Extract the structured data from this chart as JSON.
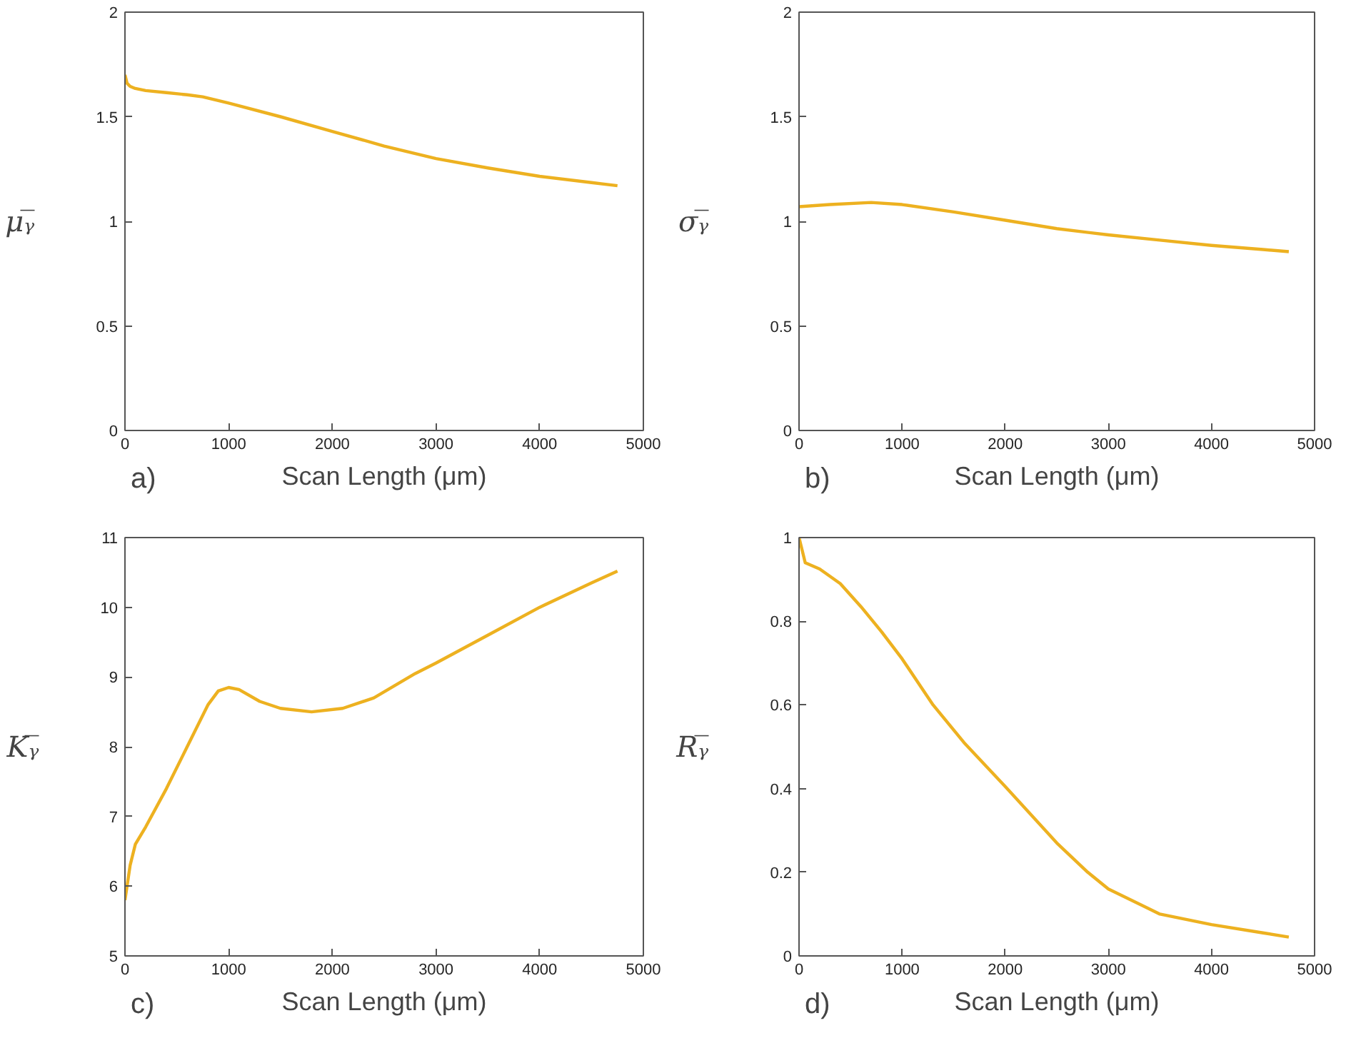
{
  "chart_data": [
    {
      "type": "line",
      "xlabel": "Scan Length (μm)",
      "ylabel": "μᵧ̅",
      "annotations": [
        "a)"
      ],
      "grid": false,
      "xlim": [
        0,
        5000
      ],
      "xticks": [
        0,
        1000,
        2000,
        3000,
        4000,
        5000
      ],
      "ylim": [
        0,
        2
      ],
      "yticks": [
        0,
        0.5,
        1,
        1.5,
        2
      ],
      "x": [
        0,
        20,
        50,
        100,
        200,
        400,
        600,
        750,
        1000,
        1500,
        2000,
        2500,
        3000,
        3500,
        4000,
        4500,
        4750
      ],
      "series": [
        {
          "color": "#edb120",
          "values": [
            1.7,
            1.66,
            1.645,
            1.635,
            1.625,
            1.615,
            1.605,
            1.595,
            1.565,
            1.5,
            1.43,
            1.36,
            1.3,
            1.255,
            1.215,
            1.185,
            1.17
          ]
        }
      ]
    },
    {
      "type": "line",
      "xlabel": "Scan Length (μm)",
      "ylabel": "σᵧ̅",
      "annotations": [
        "b)"
      ],
      "grid": false,
      "xlim": [
        0,
        5000
      ],
      "xticks": [
        0,
        1000,
        2000,
        3000,
        4000,
        5000
      ],
      "ylim": [
        0,
        2
      ],
      "yticks": [
        0,
        0.5,
        1,
        1.5,
        2
      ],
      "x": [
        0,
        300,
        700,
        1000,
        1500,
        2000,
        2500,
        3000,
        3500,
        4000,
        4500,
        4750
      ],
      "series": [
        {
          "color": "#edb120",
          "values": [
            1.07,
            1.08,
            1.09,
            1.08,
            1.045,
            1.005,
            0.965,
            0.935,
            0.91,
            0.885,
            0.865,
            0.855
          ]
        }
      ]
    },
    {
      "type": "line",
      "xlabel": "Scan Length (μm)",
      "ylabel": "Kᵧ̅",
      "annotations": [
        "c)"
      ],
      "grid": false,
      "xlim": [
        0,
        5000
      ],
      "xticks": [
        0,
        1000,
        2000,
        3000,
        4000,
        5000
      ],
      "ylim": [
        5,
        11
      ],
      "yticks": [
        5,
        6,
        7,
        8,
        9,
        10,
        11
      ],
      "x": [
        0,
        50,
        100,
        200,
        400,
        600,
        800,
        900,
        1000,
        1100,
        1300,
        1500,
        1800,
        2100,
        2400,
        2800,
        3000,
        3500,
        4000,
        4500,
        4750
      ],
      "series": [
        {
          "color": "#edb120",
          "values": [
            5.8,
            6.3,
            6.6,
            6.85,
            7.4,
            8.0,
            8.6,
            8.8,
            8.85,
            8.82,
            8.65,
            8.55,
            8.5,
            8.55,
            8.7,
            9.05,
            9.2,
            9.6,
            10.0,
            10.35,
            10.52
          ]
        }
      ]
    },
    {
      "type": "line",
      "xlabel": "Scan Length (μm)",
      "ylabel": "Rᵧ̅",
      "annotations": [
        "d)"
      ],
      "grid": false,
      "xlim": [
        0,
        5000
      ],
      "xticks": [
        0,
        1000,
        2000,
        3000,
        4000,
        5000
      ],
      "ylim": [
        0,
        1
      ],
      "yticks": [
        0,
        0.2,
        0.4,
        0.6,
        0.8,
        1
      ],
      "x": [
        0,
        30,
        60,
        200,
        400,
        600,
        800,
        1000,
        1300,
        1600,
        2000,
        2500,
        2800,
        3000,
        3500,
        4000,
        4500,
        4750
      ],
      "series": [
        {
          "color": "#edb120",
          "values": [
            1.0,
            0.97,
            0.94,
            0.925,
            0.89,
            0.835,
            0.775,
            0.71,
            0.6,
            0.51,
            0.405,
            0.27,
            0.2,
            0.16,
            0.1,
            0.075,
            0.055,
            0.045
          ]
        }
      ]
    }
  ]
}
